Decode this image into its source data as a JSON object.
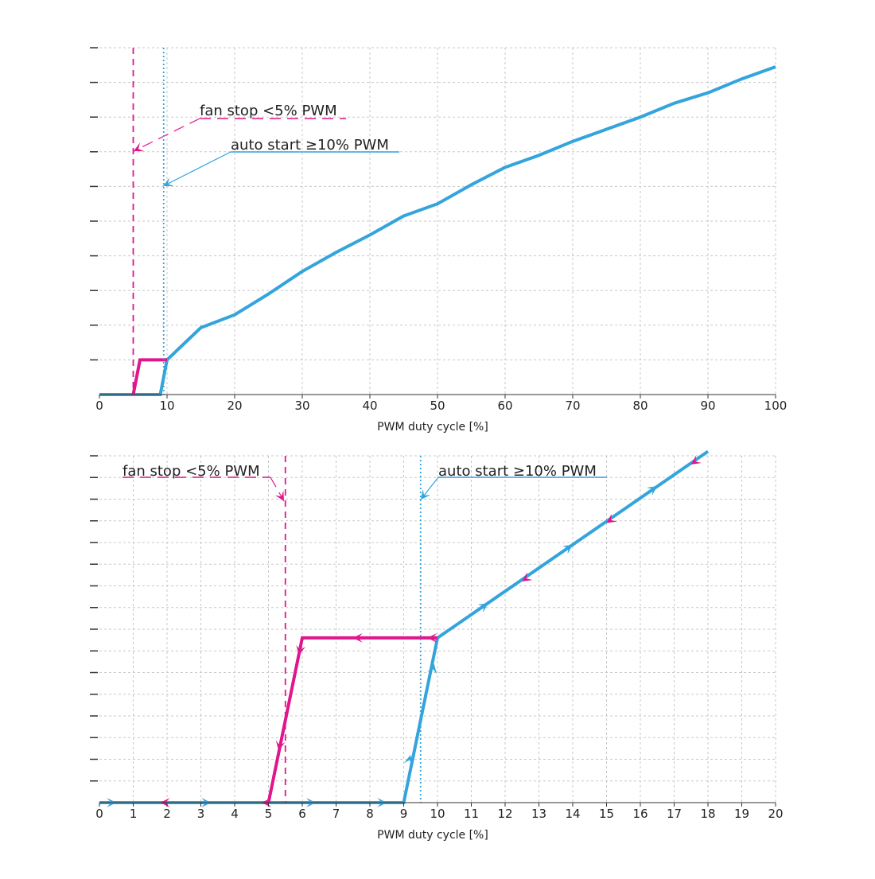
{
  "colors": {
    "auto": "#33a4dc",
    "stop": "#e0168c",
    "grid": "#c8c8c8",
    "axis": "#333333",
    "text": "#222222"
  },
  "chart_data": [
    {
      "type": "line",
      "xlabel": "PWM duty cycle [%]",
      "ylabel": "",
      "xlim": [
        0,
        100
      ],
      "ylim": [
        0,
        10
      ],
      "x_ticks": [
        "0",
        "10",
        "20",
        "30",
        "40",
        "50",
        "60",
        "70",
        "80",
        "90",
        "100"
      ],
      "y_ticks_count": 10,
      "grid": true,
      "annotations": [
        {
          "text": "fan stop <5% PWM",
          "series": "stop",
          "x": 5
        },
        {
          "text": "auto start ≥10% PWM",
          "series": "auto",
          "x": 9.5
        }
      ],
      "series": [
        {
          "key": "auto",
          "points": [
            [
              0,
              0
            ],
            [
              9,
              0
            ],
            [
              10,
              1
            ],
            [
              15,
              1.93
            ],
            [
              20,
              2.3
            ],
            [
              25,
              2.9
            ],
            [
              30,
              3.55
            ],
            [
              35,
              4.1
            ],
            [
              40,
              4.6
            ],
            [
              45,
              5.15
            ],
            [
              50,
              5.5
            ],
            [
              55,
              6.05
            ],
            [
              60,
              6.55
            ],
            [
              65,
              6.9
            ],
            [
              70,
              7.3
            ],
            [
              75,
              7.65
            ],
            [
              80,
              8
            ],
            [
              85,
              8.4
            ],
            [
              90,
              8.7
            ],
            [
              95,
              9.1
            ],
            [
              100,
              9.45
            ]
          ]
        },
        {
          "key": "stop",
          "points": [
            [
              5,
              0
            ],
            [
              6,
              1
            ],
            [
              10,
              1
            ]
          ]
        }
      ]
    },
    {
      "type": "line",
      "xlabel": "PWM duty cycle [%]",
      "ylabel": "",
      "xlim": [
        0,
        20
      ],
      "ylim": [
        0,
        16
      ],
      "x_ticks": [
        "0",
        "1",
        "2",
        "3",
        "4",
        "5",
        "6",
        "7",
        "8",
        "9",
        "10",
        "11",
        "12",
        "13",
        "14",
        "15",
        "16",
        "17",
        "18",
        "19",
        "20"
      ],
      "y_ticks_count": 16,
      "grid": true,
      "annotations": [
        {
          "text": "fan stop <5% PWM",
          "series": "stop",
          "x": 5.5
        },
        {
          "text": "auto start ≥10% PWM",
          "series": "auto",
          "x": 9.5
        }
      ],
      "series": [
        {
          "key": "auto",
          "points": [
            [
              0,
              0
            ],
            [
              9,
              0
            ],
            [
              10,
              7.6
            ],
            [
              18,
              16.2
            ]
          ],
          "direction_marks": [
            [
              0.5,
              0
            ],
            [
              3.3,
              0
            ],
            [
              6.4,
              0
            ],
            [
              8.5,
              0
            ],
            [
              9.2,
              2.2
            ],
            [
              9.9,
              6.4
            ],
            [
              11.5,
              9.2
            ],
            [
              14,
              11.9
            ],
            [
              16.5,
              14.6
            ]
          ]
        },
        {
          "key": "stop",
          "points": [
            [
              10,
              7.6
            ],
            [
              6,
              7.6
            ],
            [
              5,
              0
            ]
          ],
          "direction_marks": [
            [
              9.7,
              7.6
            ],
            [
              7.5,
              7.6
            ],
            [
              5.9,
              6.8
            ],
            [
              5.3,
              2.4
            ],
            [
              4.8,
              0
            ],
            [
              1.8,
              0
            ],
            [
              12.5,
              10.2
            ],
            [
              15,
              12.9
            ],
            [
              17.5,
              15.6
            ]
          ]
        }
      ]
    }
  ]
}
